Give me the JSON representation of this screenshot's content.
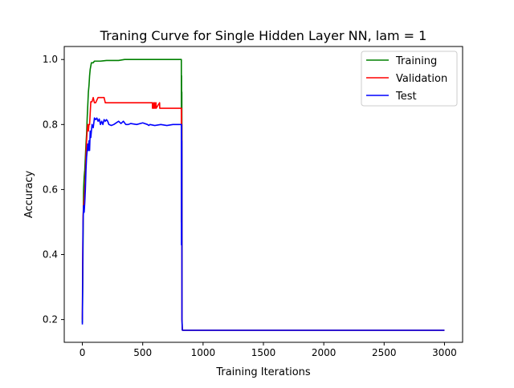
{
  "chart_data": {
    "type": "line",
    "title": "Traning Curve for Single Hidden Layer NN, lam = 1",
    "xlabel": "Training Iterations",
    "ylabel": "Accuracy",
    "xlim": [
      -150,
      3150
    ],
    "ylim": [
      0.13,
      1.04
    ],
    "xticks": [
      0,
      500,
      1000,
      1500,
      2000,
      2500,
      3000
    ],
    "xtick_labels": [
      "0",
      "500",
      "1000",
      "1500",
      "2000",
      "2500",
      "3000"
    ],
    "yticks": [
      0.2,
      0.4,
      0.6,
      0.8,
      1.0
    ],
    "ytick_labels": [
      "0.2",
      "0.4",
      "0.6",
      "0.8",
      "1.0"
    ],
    "grid": false,
    "legend_position": "top-right",
    "series": [
      {
        "name": "Training",
        "color": "#008000",
        "x": [
          0,
          3,
          6,
          10,
          15,
          20,
          25,
          30,
          35,
          40,
          45,
          50,
          55,
          60,
          65,
          70,
          75,
          80,
          90,
          100,
          120,
          150,
          200,
          250,
          300,
          350,
          400,
          500,
          600,
          700,
          800,
          820,
          821,
          822,
          823,
          824,
          825,
          826,
          828,
          830,
          850,
          1000,
          1500,
          2000,
          2500,
          3000
        ],
        "y": [
          0.19,
          0.3,
          0.45,
          0.6,
          0.64,
          0.66,
          0.7,
          0.74,
          0.77,
          0.82,
          0.86,
          0.9,
          0.92,
          0.95,
          0.97,
          0.98,
          0.99,
          0.99,
          0.99,
          0.995,
          0.995,
          0.995,
          0.997,
          0.997,
          0.997,
          1.0,
          1.0,
          1.0,
          1.0,
          1.0,
          1.0,
          1.0,
          0.5,
          0.95,
          0.6,
          0.9,
          0.7,
          0.2,
          0.168,
          0.167,
          0.167,
          0.167,
          0.167,
          0.167,
          0.167,
          0.167
        ]
      },
      {
        "name": "Validation",
        "color": "#ff0000",
        "x": [
          0,
          3,
          6,
          10,
          15,
          20,
          25,
          30,
          35,
          40,
          45,
          50,
          55,
          60,
          70,
          80,
          90,
          100,
          110,
          130,
          140,
          180,
          190,
          200,
          300,
          400,
          500,
          580,
          581,
          590,
          591,
          600,
          601,
          610,
          611,
          640,
          641,
          650,
          651,
          660,
          700,
          800,
          820,
          821,
          822,
          823,
          824,
          825,
          828,
          830,
          850,
          1000,
          1500,
          2000,
          2500,
          3000
        ],
        "y": [
          0.2,
          0.4,
          0.52,
          0.55,
          0.57,
          0.6,
          0.64,
          0.7,
          0.75,
          0.78,
          0.8,
          0.78,
          0.8,
          0.8,
          0.87,
          0.87,
          0.883,
          0.867,
          0.867,
          0.883,
          0.883,
          0.883,
          0.867,
          0.867,
          0.867,
          0.867,
          0.867,
          0.867,
          0.85,
          0.867,
          0.85,
          0.867,
          0.85,
          0.867,
          0.85,
          0.867,
          0.85,
          0.85,
          0.85,
          0.85,
          0.85,
          0.85,
          0.85,
          0.5,
          0.85,
          0.55,
          0.8,
          0.2,
          0.168,
          0.167,
          0.167,
          0.167,
          0.167,
          0.167,
          0.167,
          0.167
        ]
      },
      {
        "name": "Test",
        "color": "#0000ff",
        "x": [
          0,
          3,
          6,
          10,
          15,
          20,
          25,
          30,
          35,
          40,
          45,
          50,
          55,
          60,
          65,
          70,
          80,
          90,
          100,
          110,
          120,
          130,
          140,
          150,
          160,
          170,
          180,
          190,
          200,
          210,
          220,
          240,
          260,
          280,
          300,
          320,
          340,
          360,
          380,
          400,
          450,
          500,
          540,
          550,
          560,
          600,
          650,
          700,
          750,
          800,
          820,
          821,
          822,
          823,
          824,
          825,
          828,
          830,
          850,
          1000,
          1500,
          2000,
          2500,
          3000
        ],
        "y": [
          0.185,
          0.35,
          0.5,
          0.55,
          0.53,
          0.56,
          0.6,
          0.66,
          0.7,
          0.72,
          0.74,
          0.72,
          0.75,
          0.72,
          0.78,
          0.76,
          0.8,
          0.79,
          0.82,
          0.815,
          0.82,
          0.81,
          0.817,
          0.8,
          0.81,
          0.8,
          0.815,
          0.81,
          0.815,
          0.81,
          0.8,
          0.797,
          0.8,
          0.805,
          0.81,
          0.803,
          0.81,
          0.8,
          0.8,
          0.803,
          0.8,
          0.805,
          0.8,
          0.797,
          0.8,
          0.797,
          0.8,
          0.797,
          0.8,
          0.8,
          0.8,
          0.43,
          0.8,
          0.45,
          0.75,
          0.2,
          0.168,
          0.167,
          0.167,
          0.167,
          0.167,
          0.167,
          0.167,
          0.167
        ]
      }
    ]
  }
}
